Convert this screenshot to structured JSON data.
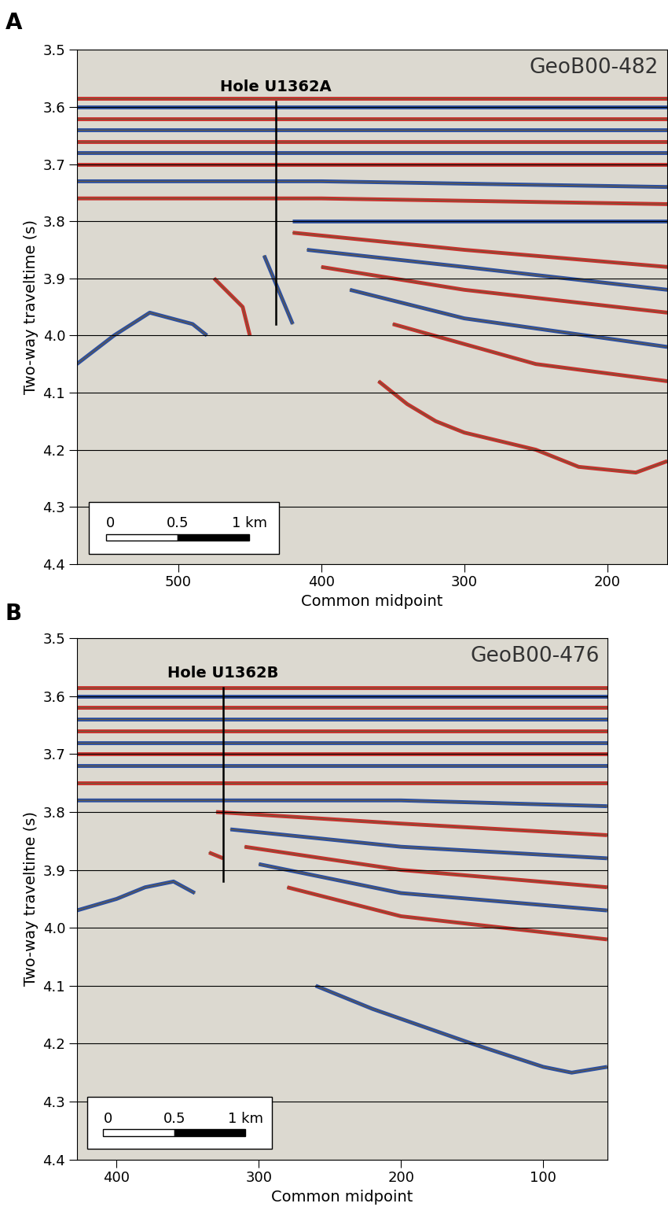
{
  "chart_data": [
    {
      "type": "seismic",
      "panel": "A",
      "title": "GeoB00-482",
      "x_label": "Common midpoint",
      "y_label": "Two-way traveltime (s)",
      "xlim": [
        571,
        158
      ],
      "ylim": [
        4.4,
        3.5
      ],
      "xticks": [
        500,
        400,
        300,
        200
      ],
      "yticks": [
        3.5,
        3.6,
        3.7,
        3.8,
        3.9,
        {
          "value": 4,
          "label": "4.0"
        },
        4.1,
        4.2,
        4.3,
        4.4
      ],
      "grid": true,
      "colors": [
        "#c8302c",
        "#2b4fa0"
      ],
      "hole": {
        "label": "Hole U1362A",
        "x": 432,
        "y": [
          3.59,
          3.98
        ]
      },
      "scale_bar": {
        "ticks": [
          0,
          0.5,
          1
        ],
        "labels": [
          "0",
          "0.5",
          "1 km"
        ],
        "cmp_per_km": 100
      },
      "horizons": [
        {
          "x": [
            571,
            158
          ],
          "y": [
            3.585,
            3.585
          ]
        },
        {
          "x": [
            571,
            158
          ],
          "y": [
            3.6,
            3.6
          ]
        },
        {
          "x": [
            571,
            158
          ],
          "y": [
            3.62,
            3.62
          ]
        },
        {
          "x": [
            571,
            158
          ],
          "y": [
            3.64,
            3.64
          ]
        },
        {
          "x": [
            571,
            158
          ],
          "y": [
            3.66,
            3.66
          ]
        },
        {
          "x": [
            571,
            158
          ],
          "y": [
            3.68,
            3.68
          ]
        },
        {
          "x": [
            571,
            158
          ],
          "y": [
            3.7,
            3.7
          ]
        },
        {
          "x": [
            571,
            400,
            158
          ],
          "y": [
            3.73,
            3.73,
            3.74
          ]
        },
        {
          "x": [
            571,
            400,
            158
          ],
          "y": [
            3.76,
            3.76,
            3.77
          ]
        },
        {
          "x": [
            420,
            158
          ],
          "y": [
            3.8,
            3.8
          ]
        },
        {
          "x": [
            420,
            300,
            158
          ],
          "y": [
            3.82,
            3.85,
            3.88
          ]
        },
        {
          "x": [
            410,
            300,
            158
          ],
          "y": [
            3.85,
            3.88,
            3.92
          ]
        },
        {
          "x": [
            400,
            300,
            158
          ],
          "y": [
            3.88,
            3.92,
            3.96
          ]
        },
        {
          "x": [
            380,
            300,
            158
          ],
          "y": [
            3.92,
            3.97,
            4.02
          ]
        },
        {
          "x": [
            350,
            250,
            158
          ],
          "y": [
            3.98,
            4.05,
            4.08
          ]
        },
        {
          "x": [
            571,
            545,
            520,
            490,
            480
          ],
          "y": [
            4.05,
            4.0,
            3.96,
            3.98,
            4.0
          ]
        },
        {
          "x": [
            475,
            455,
            450
          ],
          "y": [
            3.9,
            3.95,
            4.0
          ]
        },
        {
          "x": [
            440,
            430,
            420
          ],
          "y": [
            3.86,
            3.92,
            3.98
          ]
        },
        {
          "x": [
            360,
            340,
            320,
            300,
            250,
            220,
            180,
            158
          ],
          "y": [
            4.08,
            4.12,
            4.15,
            4.17,
            4.2,
            4.23,
            4.24,
            4.22
          ]
        }
      ]
    },
    {
      "type": "seismic",
      "panel": "B",
      "title": "GeoB00-476",
      "x_label": "Common midpoint",
      "y_label": "Two-way traveltime (s)",
      "xlim": [
        428,
        55
      ],
      "ylim": [
        4.4,
        3.5
      ],
      "xticks": [
        400,
        300,
        200,
        100
      ],
      "yticks": [
        3.5,
        3.6,
        3.7,
        3.8,
        3.9,
        {
          "value": 4,
          "label": "4.0"
        },
        4.1,
        4.2,
        4.3,
        4.4
      ],
      "grid": true,
      "colors": [
        "#c8302c",
        "#2b4fa0"
      ],
      "hole": {
        "label": "Hole U1362B",
        "x": 325,
        "y": [
          3.585,
          3.92
        ]
      },
      "scale_bar": {
        "ticks": [
          0,
          0.5,
          1
        ],
        "labels": [
          "0",
          "0.5",
          "1 km"
        ],
        "cmp_per_km": 100
      },
      "horizons": [
        {
          "x": [
            428,
            55
          ],
          "y": [
            3.585,
            3.585
          ]
        },
        {
          "x": [
            428,
            55
          ],
          "y": [
            3.6,
            3.6
          ]
        },
        {
          "x": [
            428,
            55
          ],
          "y": [
            3.62,
            3.62
          ]
        },
        {
          "x": [
            428,
            55
          ],
          "y": [
            3.64,
            3.64
          ]
        },
        {
          "x": [
            428,
            55
          ],
          "y": [
            3.66,
            3.66
          ]
        },
        {
          "x": [
            428,
            55
          ],
          "y": [
            3.68,
            3.68
          ]
        },
        {
          "x": [
            428,
            55
          ],
          "y": [
            3.7,
            3.7
          ]
        },
        {
          "x": [
            428,
            55
          ],
          "y": [
            3.72,
            3.72
          ]
        },
        {
          "x": [
            428,
            55
          ],
          "y": [
            3.75,
            3.75
          ]
        },
        {
          "x": [
            428,
            200,
            55
          ],
          "y": [
            3.78,
            3.78,
            3.79
          ]
        },
        {
          "x": [
            330,
            200,
            55
          ],
          "y": [
            3.8,
            3.82,
            3.84
          ]
        },
        {
          "x": [
            320,
            200,
            55
          ],
          "y": [
            3.83,
            3.86,
            3.88
          ]
        },
        {
          "x": [
            310,
            200,
            55
          ],
          "y": [
            3.86,
            3.9,
            3.93
          ]
        },
        {
          "x": [
            300,
            200,
            55
          ],
          "y": [
            3.89,
            3.94,
            3.97
          ]
        },
        {
          "x": [
            280,
            200,
            55
          ],
          "y": [
            3.93,
            3.98,
            4.02
          ]
        },
        {
          "x": [
            428,
            400,
            380,
            360,
            345
          ],
          "y": [
            3.97,
            3.95,
            3.93,
            3.92,
            3.94
          ]
        },
        {
          "x": [
            335,
            325
          ],
          "y": [
            3.87,
            3.88
          ]
        },
        {
          "x": [
            260,
            220,
            150,
            100,
            80,
            55
          ],
          "y": [
            4.1,
            4.14,
            4.2,
            4.24,
            4.25,
            4.24
          ]
        }
      ]
    }
  ]
}
